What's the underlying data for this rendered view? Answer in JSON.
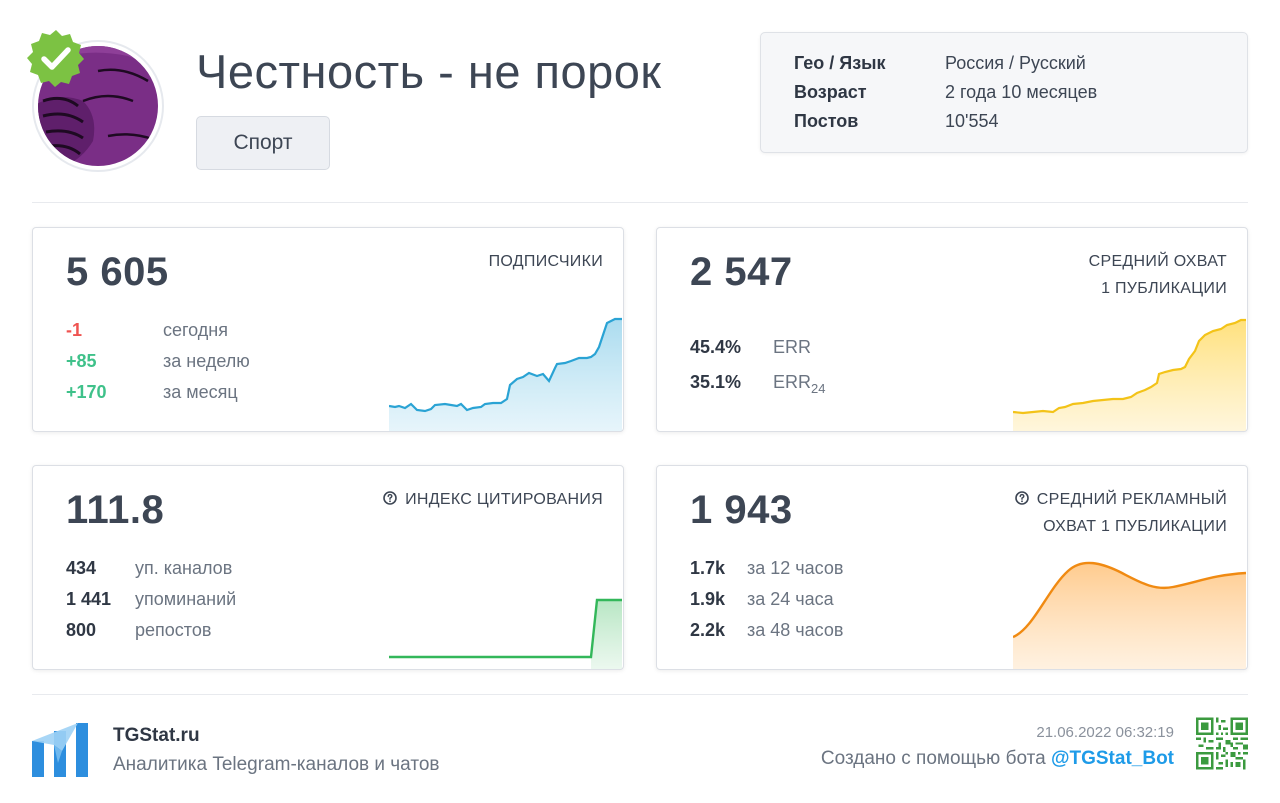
{
  "header": {
    "title": "Честность - не порок",
    "category": "Спорт",
    "info": [
      {
        "key": "Гео / Язык",
        "value": "Россия / Русский"
      },
      {
        "key": "Возраст",
        "value": "2 года 10 месяцев"
      },
      {
        "key": "Постов",
        "value": "10'554"
      }
    ]
  },
  "cards": {
    "subscribers": {
      "value": "5 605",
      "label": "ПОДПИСЧИКИ",
      "stats": [
        {
          "num": "-1",
          "text": "сегодня"
        },
        {
          "num": "+85",
          "text": "за неделю"
        },
        {
          "num": "+170",
          "text": "за месяц"
        }
      ],
      "color": "#2aa3d4"
    },
    "reach": {
      "value": "2 547",
      "label_line1": "СРЕДНИЙ ОХВАТ",
      "label_line2": "1 ПУБЛИКАЦИИ",
      "stats": [
        {
          "num": "45.4%",
          "text": "ERR"
        },
        {
          "num": "35.1%",
          "text": "ERR",
          "sub": "24"
        }
      ],
      "color": "#f3c318"
    },
    "citation": {
      "value": "111.8",
      "label": "ИНДЕКС ЦИТИРОВАНИЯ",
      "stats": [
        {
          "num": "434",
          "text": "уп. каналов"
        },
        {
          "num": "1 441",
          "text": "упоминаний"
        },
        {
          "num": "800",
          "text": "репостов"
        }
      ],
      "color": "#33b75a"
    },
    "ad_reach": {
      "value": "1 943",
      "label_line1": "СРЕДНИЙ РЕКЛАМНЫЙ",
      "label_line2": "ОХВАТ 1 ПУБЛИКАЦИИ",
      "stats": [
        {
          "num": "1.7k",
          "text": "за 12 часов"
        },
        {
          "num": "1.9k",
          "text": "за 24 часа"
        },
        {
          "num": "2.2k",
          "text": "за 48 часов"
        }
      ],
      "color": "#f08a12"
    }
  },
  "footer": {
    "brand": "TGStat.ru",
    "description": "Аналитика Telegram-каналов и чатов",
    "timestamp": "21.06.2022 06:32:19",
    "created_text": "Создано с помощью бота",
    "bot": "@TGStat_Bot"
  },
  "icons": {
    "verified": "verified-badge-icon",
    "info": "info-circle-icon",
    "logo": "tgstat-logo-icon",
    "qr": "qr-code-icon"
  }
}
